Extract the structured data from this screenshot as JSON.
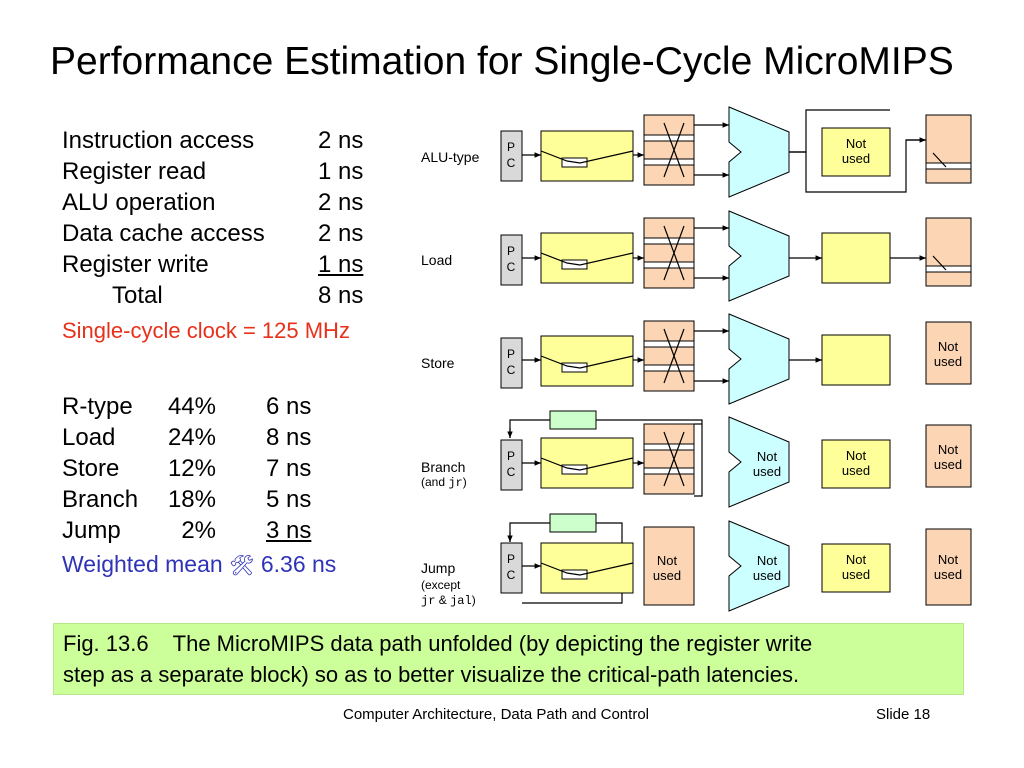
{
  "title": "Performance Estimation for Single-Cycle MicroMIPS",
  "latencies": [
    {
      "name": "Instruction access",
      "value": "2 ns"
    },
    {
      "name": "Register read",
      "value": "1 ns"
    },
    {
      "name": "ALU operation",
      "value": "2 ns"
    },
    {
      "name": "Data cache access",
      "value": "2 ns"
    },
    {
      "name": "Register write",
      "value": "1 ns"
    },
    {
      "name": "Total",
      "value": "8 ns"
    }
  ],
  "clock_text": "Single-cycle clock = 125 MHz",
  "mix": [
    {
      "type": "R-type",
      "pct": "44%",
      "time": "6 ns"
    },
    {
      "type": "Load",
      "pct": "24%",
      "time": "8 ns"
    },
    {
      "type": "Store",
      "pct": "12%",
      "time": "7 ns"
    },
    {
      "type": "Branch",
      "pct": "18%",
      "time": "5 ns"
    },
    {
      "type": "Jump",
      "pct": "2%",
      "time": "3 ns"
    }
  ],
  "weighted_mean": {
    "label": "Weighted mean",
    "symbol": "🛠",
    "value": "6.36 ns"
  },
  "diagram": {
    "rows": [
      {
        "label": "ALU-type",
        "sub": ""
      },
      {
        "label": "Load",
        "sub": ""
      },
      {
        "label": "Store",
        "sub": ""
      },
      {
        "label": "Branch",
        "sub_pre": "(and ",
        "sub_code": "jr",
        "sub_post": ")"
      },
      {
        "label": "Jump",
        "sub_line1": "(except",
        "sub_code1": "jr",
        "sub_amp": " & ",
        "sub_code2": "jal",
        "sub_post": ")"
      }
    ],
    "pc_label": "P\nC",
    "not_used_label": "Not\nused",
    "colors": {
      "orange": "#fcd5b4",
      "yellow": "#ffff99",
      "green": "#ccffcc",
      "gray": "#d9d9d9",
      "lightblue": "#ccffff"
    }
  },
  "caption": "Fig. 13.6    The MicroMIPS data path unfolded (by depicting the register write\nstep as a separate block) so as to better visualize the critical-path latencies.",
  "footer": {
    "course": "Computer Architecture, Data Path and Control",
    "slide": "Slide 18"
  }
}
